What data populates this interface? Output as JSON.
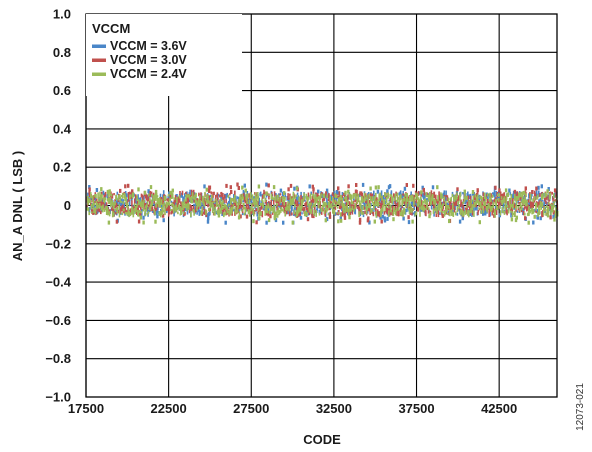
{
  "chart_data": {
    "type": "scatter",
    "title": "",
    "xlabel": "CODE",
    "ylabel": "AN_A DNL ( LSB )",
    "xlim": [
      17500,
      46000
    ],
    "ylim": [
      -1.0,
      1.0
    ],
    "x_ticks": [
      "17500",
      "22500",
      "27500",
      "32500",
      "37500",
      "42500"
    ],
    "y_ticks": [
      "1.0",
      "0.8",
      "0.6",
      "0.4",
      "0.2",
      "0",
      "−0.2",
      "−0.4",
      "−0.6",
      "−0.8",
      "−1.0"
    ],
    "grid": true,
    "legend": {
      "title": "VCCM",
      "placement": "top-left"
    },
    "series": [
      {
        "name": "VCCM = 3.6V",
        "color": "#4a86c8",
        "x_range": [
          17500,
          46000
        ],
        "y_band": [
          -0.07,
          0.09
        ]
      },
      {
        "name": "VCCM = 3.0V",
        "color": "#c0504d",
        "x_range": [
          17500,
          46000
        ],
        "y_band": [
          -0.07,
          0.09
        ]
      },
      {
        "name": "VCCM = 2.4V",
        "color": "#9bbb59",
        "x_range": [
          17500,
          46000
        ],
        "y_band": [
          -0.07,
          0.08
        ]
      }
    ],
    "figure_id": "12073-021"
  }
}
